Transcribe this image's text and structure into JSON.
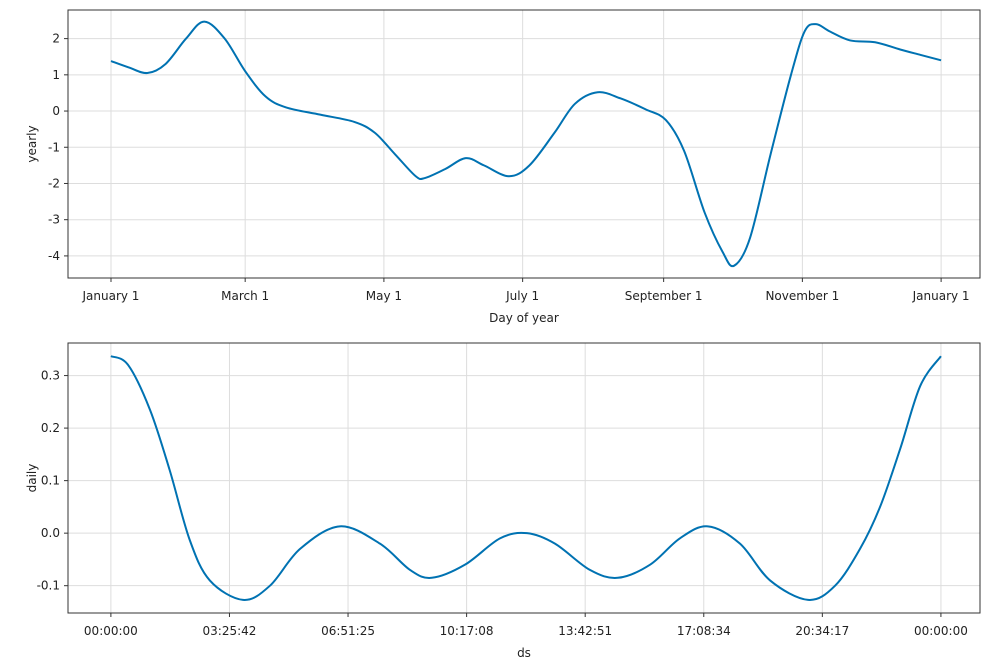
{
  "chart_data": [
    {
      "type": "line",
      "xlabel": "Day of year",
      "ylabel": "yearly",
      "grid": true,
      "x": [
        0,
        8,
        16,
        24,
        33,
        41,
        50,
        59,
        68,
        77,
        92,
        107,
        116,
        125,
        134,
        138,
        147,
        156,
        164,
        175,
        184,
        195,
        204,
        214,
        224,
        235,
        244,
        252,
        261,
        269,
        274,
        281,
        290,
        299,
        305,
        310,
        316,
        325,
        336,
        347,
        356,
        365
      ],
      "series": [
        {
          "name": "yearly",
          "color": "#0072B2",
          "values": [
            1.38,
            1.2,
            1.05,
            1.3,
            2.0,
            2.47,
            2.0,
            1.1,
            0.4,
            0.1,
            -0.1,
            -0.3,
            -0.6,
            -1.2,
            -1.8,
            -1.85,
            -1.6,
            -1.3,
            -1.5,
            -1.8,
            -1.5,
            -0.6,
            0.2,
            0.52,
            0.35,
            0.05,
            -0.25,
            -1.1,
            -2.8,
            -3.9,
            -4.27,
            -3.5,
            -1.2,
            1.0,
            2.2,
            2.4,
            2.2,
            1.95,
            1.9,
            1.7,
            1.55,
            1.4
          ]
        }
      ],
      "xlim": [
        -18.9,
        382.1
      ],
      "xticks": [
        {
          "value": 0,
          "label": "January 1"
        },
        {
          "value": 59,
          "label": "March 1"
        },
        {
          "value": 120,
          "label": "May 1"
        },
        {
          "value": 181,
          "label": "July 1"
        },
        {
          "value": 243,
          "label": "September 1"
        },
        {
          "value": 304,
          "label": "November 1"
        },
        {
          "value": 365,
          "label": "January 1"
        }
      ],
      "ylim": [
        -4.61,
        2.79
      ],
      "yticks": [
        -4,
        -3,
        -2,
        -1,
        0,
        1,
        2
      ]
    },
    {
      "type": "line",
      "xlabel": "ds",
      "ylabel": "daily",
      "grid": true,
      "x": [
        0,
        0.5,
        1.13,
        1.7,
        2.28,
        2.86,
        3.82,
        4.6,
        5.47,
        6.62,
        7.78,
        8.65,
        9.28,
        10.24,
        11.25,
        12.03,
        12.84,
        13.85,
        14.66,
        15.59,
        16.45,
        17.26,
        18.19,
        19.06,
        20.16,
        20.94,
        21.66,
        22.24,
        22.82,
        23.4,
        24
      ],
      "series": [
        {
          "name": "daily",
          "color": "#0072B2",
          "values": [
            0.337,
            0.32,
            0.235,
            0.12,
            -0.013,
            -0.09,
            -0.127,
            -0.1,
            -0.03,
            0.013,
            -0.02,
            -0.07,
            -0.085,
            -0.06,
            -0.01,
            0.0,
            -0.02,
            -0.07,
            -0.085,
            -0.06,
            -0.01,
            0.013,
            -0.02,
            -0.09,
            -0.127,
            -0.1,
            -0.03,
            0.05,
            0.16,
            0.28,
            0.337
          ]
        }
      ],
      "xlim": [
        -1.24,
        25.13
      ],
      "xticks": [
        {
          "value": 0,
          "label": "00:00:00"
        },
        {
          "value": 3.4286,
          "label": "03:25:42"
        },
        {
          "value": 6.8571,
          "label": "06:51:25"
        },
        {
          "value": 10.2857,
          "label": "10:17:08"
        },
        {
          "value": 13.7143,
          "label": "13:42:51"
        },
        {
          "value": 17.1429,
          "label": "17:08:34"
        },
        {
          "value": 20.5714,
          "label": "20:34:17"
        },
        {
          "value": 24,
          "label": "00:00:00"
        }
      ],
      "ylim": [
        -0.152,
        0.362
      ],
      "yticks": [
        -0.1,
        {
          "value": 0,
          "label": "0.0"
        },
        0.1,
        0.2,
        0.3
      ]
    }
  ]
}
